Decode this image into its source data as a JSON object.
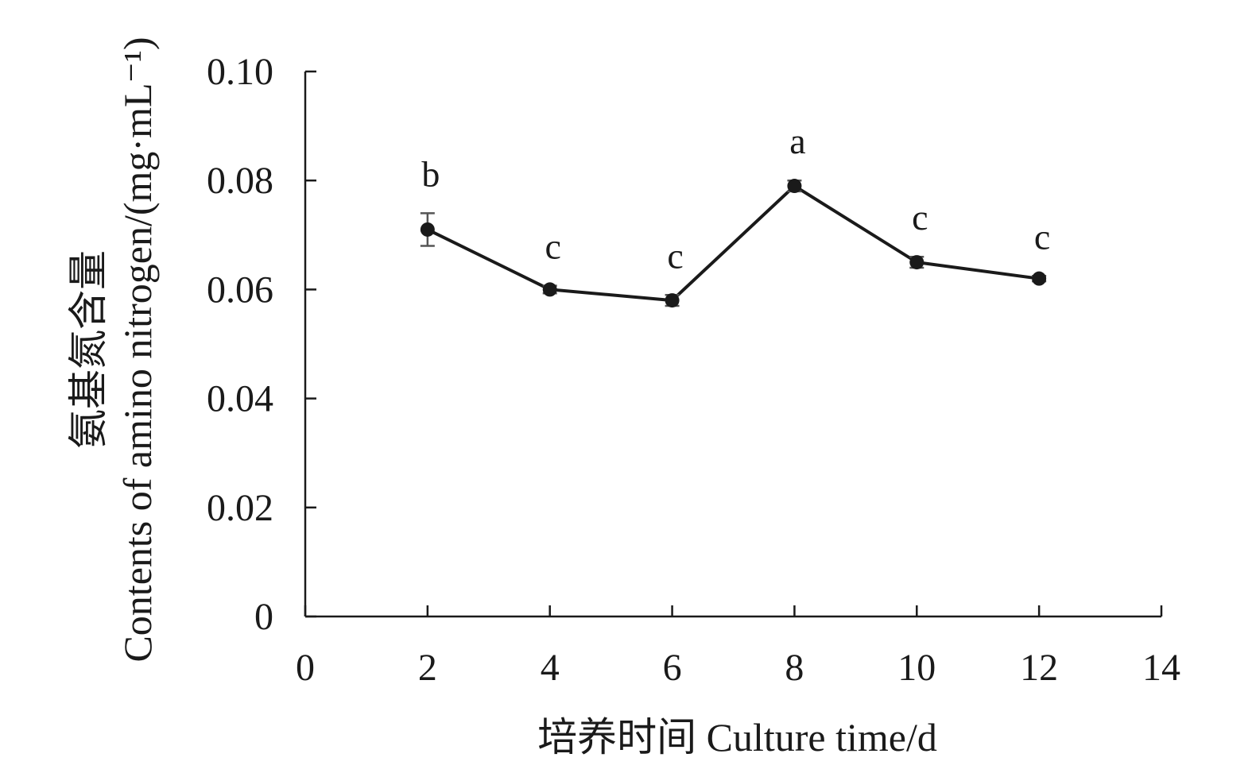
{
  "chart_data": {
    "type": "line",
    "xlabel": "培养时间 Culture time/d",
    "ylabel_zh": "氨基氮含量",
    "ylabel_en": "Contents of amino nitrogen/(mg·mL⁻¹)",
    "xlim": [
      0,
      14
    ],
    "ylim": [
      0,
      0.1
    ],
    "x_ticks": [
      "0",
      "2",
      "4",
      "6",
      "8",
      "10",
      "12",
      "14"
    ],
    "y_ticks": [
      "0",
      "0.02",
      "0.04",
      "0.06",
      "0.08",
      "0.10"
    ],
    "grid": false,
    "legend": "none",
    "series": [
      {
        "x": [
          2,
          4,
          6,
          8,
          10,
          12
        ],
        "y": [
          0.071,
          0.06,
          0.058,
          0.079,
          0.065,
          0.062
        ],
        "error": [
          0.003,
          0.0007,
          0.001,
          0.001,
          0.001,
          0.0005
        ],
        "labels": [
          "b",
          "c",
          "c",
          "a",
          "c",
          "c"
        ],
        "color": "#1a1a1a",
        "error_color": "#555555"
      }
    ]
  }
}
